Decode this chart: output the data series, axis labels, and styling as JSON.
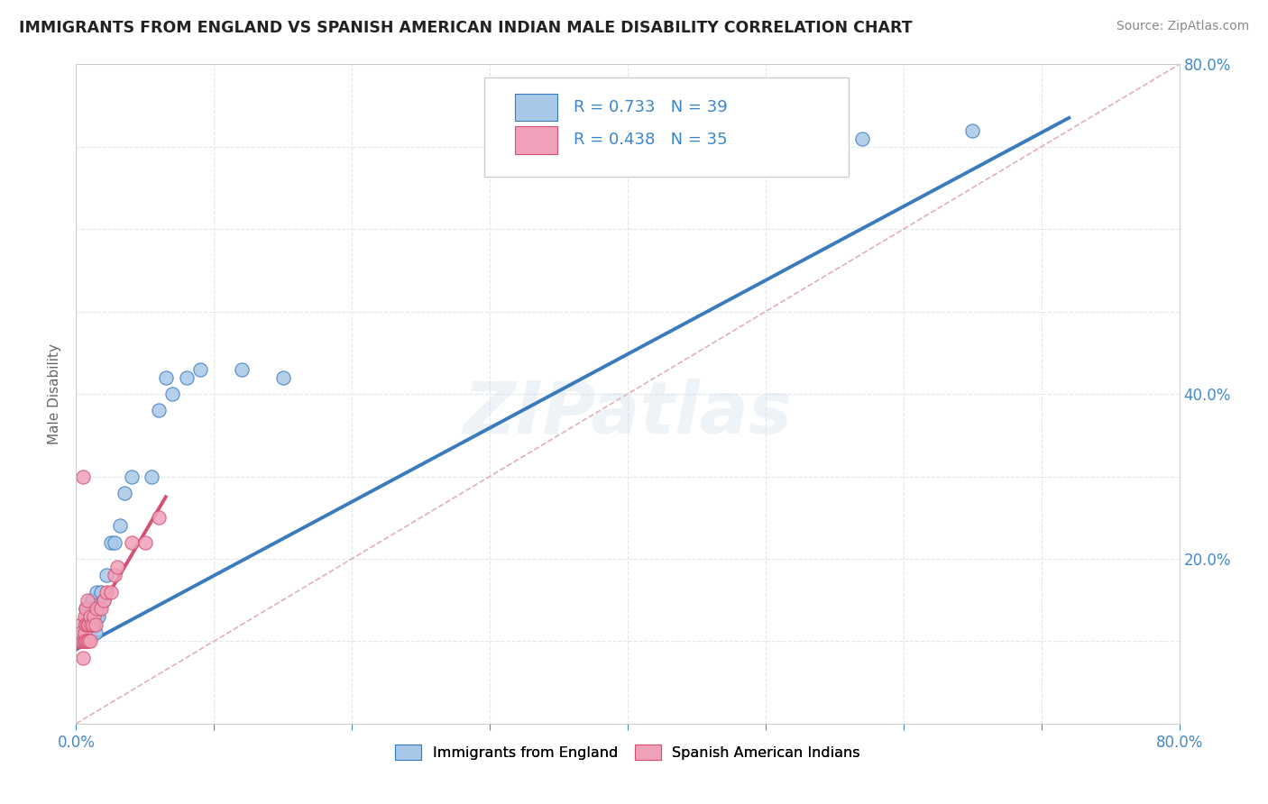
{
  "title": "IMMIGRANTS FROM ENGLAND VS SPANISH AMERICAN INDIAN MALE DISABILITY CORRELATION CHART",
  "source": "Source: ZipAtlas.com",
  "ylabel": "Male Disability",
  "xlim": [
    0.0,
    0.8
  ],
  "ylim": [
    0.0,
    0.8
  ],
  "watermark": "ZIPatlas",
  "legend_r1": "R = 0.733",
  "legend_n1": "N = 39",
  "legend_r2": "R = 0.438",
  "legend_n2": "N = 35",
  "color_england": "#a8c8e8",
  "color_spain": "#f0a0b8",
  "trendline_england": "#3a7abf",
  "trendline_spain": "#d45070",
  "diag_color": "#e0b0b8",
  "grid_color": "#e0e8f0",
  "england_x": [
    0.005,
    0.006,
    0.007,
    0.007,
    0.008,
    0.008,
    0.009,
    0.009,
    0.01,
    0.01,
    0.011,
    0.011,
    0.012,
    0.012,
    0.013,
    0.013,
    0.014,
    0.015,
    0.015,
    0.016,
    0.017,
    0.018,
    0.02,
    0.022,
    0.025,
    0.028,
    0.032,
    0.035,
    0.04,
    0.055,
    0.06,
    0.065,
    0.07,
    0.08,
    0.09,
    0.12,
    0.15,
    0.57,
    0.65
  ],
  "england_y": [
    0.1,
    0.12,
    0.11,
    0.14,
    0.1,
    0.13,
    0.11,
    0.14,
    0.11,
    0.13,
    0.12,
    0.15,
    0.12,
    0.15,
    0.12,
    0.14,
    0.11,
    0.13,
    0.16,
    0.13,
    0.14,
    0.16,
    0.15,
    0.18,
    0.22,
    0.22,
    0.24,
    0.28,
    0.3,
    0.3,
    0.38,
    0.42,
    0.4,
    0.42,
    0.43,
    0.43,
    0.42,
    0.71,
    0.72
  ],
  "spain_x": [
    0.002,
    0.003,
    0.003,
    0.004,
    0.004,
    0.005,
    0.005,
    0.005,
    0.006,
    0.006,
    0.006,
    0.007,
    0.007,
    0.007,
    0.008,
    0.008,
    0.008,
    0.009,
    0.009,
    0.01,
    0.01,
    0.011,
    0.012,
    0.013,
    0.014,
    0.015,
    0.018,
    0.02,
    0.022,
    0.025,
    0.028,
    0.03,
    0.04,
    0.05,
    0.06
  ],
  "spain_y": [
    0.1,
    0.1,
    0.12,
    0.1,
    0.11,
    0.08,
    0.1,
    0.3,
    0.1,
    0.11,
    0.13,
    0.1,
    0.12,
    0.14,
    0.1,
    0.12,
    0.15,
    0.1,
    0.12,
    0.1,
    0.13,
    0.12,
    0.12,
    0.13,
    0.12,
    0.14,
    0.14,
    0.15,
    0.16,
    0.16,
    0.18,
    0.19,
    0.22,
    0.22,
    0.25
  ],
  "trendline_e_x0": 0.0,
  "trendline_e_y0": 0.09,
  "trendline_e_x1": 0.72,
  "trendline_e_y1": 0.735,
  "trendline_s_x0": 0.0,
  "trendline_s_y0": 0.09,
  "trendline_s_x1": 0.065,
  "trendline_s_y1": 0.275
}
